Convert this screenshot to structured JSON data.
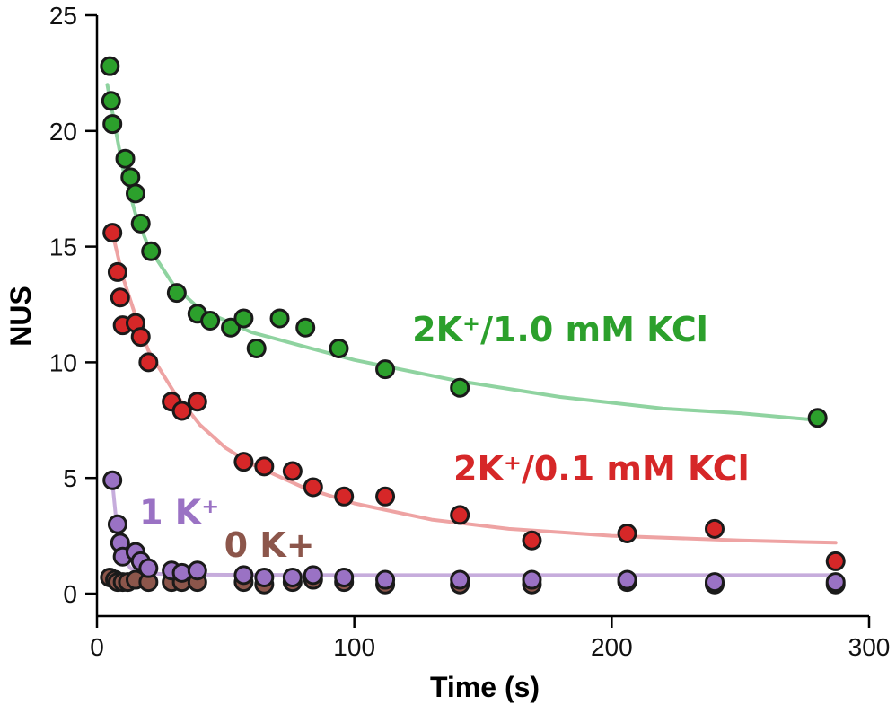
{
  "chart_data": {
    "type": "scatter",
    "xlabel": "Time (s)",
    "ylabel": "NUS",
    "xlim": [
      0,
      300
    ],
    "ylim": [
      0,
      25
    ],
    "x_ticks": [
      "0",
      "100",
      "200",
      "300"
    ],
    "y_ticks": [
      "0",
      "5",
      "10",
      "15",
      "20",
      "25"
    ],
    "grid": false,
    "series": [
      {
        "name": "2K⁺/1.0 mM KCl",
        "color": "#2ca02c",
        "fit_color": "#8fd3a0",
        "points": [
          [
            5,
            22.8
          ],
          [
            5.5,
            21.3
          ],
          [
            6,
            20.3
          ],
          [
            11,
            18.8
          ],
          [
            13,
            18.0
          ],
          [
            15,
            17.3
          ],
          [
            17,
            16.0
          ],
          [
            21,
            14.8
          ],
          [
            31,
            13.0
          ],
          [
            39,
            12.1
          ],
          [
            44,
            11.8
          ],
          [
            52,
            11.5
          ],
          [
            57,
            11.9
          ],
          [
            62,
            10.6
          ],
          [
            71,
            11.9
          ],
          [
            81,
            11.5
          ],
          [
            94,
            10.6
          ],
          [
            112,
            9.7
          ],
          [
            141,
            8.9
          ],
          [
            280,
            7.6
          ]
        ],
        "fit": [
          [
            4,
            22.0
          ],
          [
            10,
            18.4
          ],
          [
            15,
            16.4
          ],
          [
            20,
            15.0
          ],
          [
            30,
            13.3
          ],
          [
            40,
            12.3
          ],
          [
            60,
            11.3
          ],
          [
            80,
            10.7
          ],
          [
            100,
            10.1
          ],
          [
            140,
            9.2
          ],
          [
            180,
            8.5
          ],
          [
            220,
            8.0
          ],
          [
            250,
            7.8
          ],
          [
            280,
            7.5
          ]
        ]
      },
      {
        "name": "2K⁺/0.1 mM KCl",
        "color": "#d62728",
        "fit_color": "#eea3a3",
        "points": [
          [
            6,
            15.6
          ],
          [
            8,
            13.9
          ],
          [
            9,
            12.8
          ],
          [
            10,
            11.6
          ],
          [
            15,
            11.7
          ],
          [
            17,
            11.1
          ],
          [
            20,
            10.0
          ],
          [
            29,
            8.3
          ],
          [
            33,
            7.9
          ],
          [
            39,
            8.3
          ],
          [
            57,
            5.7
          ],
          [
            65,
            5.5
          ],
          [
            76,
            5.3
          ],
          [
            84,
            4.6
          ],
          [
            96,
            4.2
          ],
          [
            112,
            4.2
          ],
          [
            141,
            3.4
          ],
          [
            169,
            2.3
          ],
          [
            206,
            2.6
          ],
          [
            240,
            2.8
          ],
          [
            287,
            1.4
          ]
        ],
        "fit": [
          [
            6,
            15.6
          ],
          [
            10,
            13.7
          ],
          [
            15,
            12.0
          ],
          [
            20,
            10.5
          ],
          [
            30,
            8.7
          ],
          [
            40,
            7.3
          ],
          [
            50,
            6.3
          ],
          [
            60,
            5.6
          ],
          [
            80,
            4.6
          ],
          [
            100,
            3.9
          ],
          [
            130,
            3.2
          ],
          [
            160,
            2.8
          ],
          [
            200,
            2.5
          ],
          [
            250,
            2.3
          ],
          [
            287,
            2.2
          ]
        ]
      },
      {
        "name": "1 K⁺",
        "color": "#9a72c4",
        "fit_color": "#c6acdc",
        "points": [
          [
            6,
            4.9
          ],
          [
            8,
            3.0
          ],
          [
            9,
            2.2
          ],
          [
            10,
            1.6
          ],
          [
            15,
            1.8
          ],
          [
            17,
            1.4
          ],
          [
            20,
            1.1
          ],
          [
            29,
            1.0
          ],
          [
            33,
            0.9
          ],
          [
            39,
            1.0
          ],
          [
            57,
            0.8
          ],
          [
            65,
            0.7
          ],
          [
            76,
            0.7
          ],
          [
            84,
            0.8
          ],
          [
            96,
            0.7
          ],
          [
            112,
            0.6
          ],
          [
            141,
            0.6
          ],
          [
            169,
            0.6
          ],
          [
            206,
            0.6
          ],
          [
            240,
            0.5
          ],
          [
            287,
            0.5
          ]
        ],
        "fit": [
          [
            6,
            4.8
          ],
          [
            8,
            2.6
          ],
          [
            10,
            1.6
          ],
          [
            13,
            1.1
          ],
          [
            17,
            0.9
          ],
          [
            25,
            0.85
          ],
          [
            40,
            0.82
          ],
          [
            100,
            0.8
          ],
          [
            200,
            0.8
          ],
          [
            287,
            0.8
          ]
        ]
      },
      {
        "name": "0 K+",
        "color": "#8c564b",
        "fit_color": "#c6acdc",
        "points": [
          [
            5,
            0.7
          ],
          [
            7,
            0.6
          ],
          [
            8,
            0.5
          ],
          [
            10,
            0.5
          ],
          [
            12,
            0.5
          ],
          [
            15,
            0.6
          ],
          [
            20,
            0.5
          ],
          [
            29,
            0.5
          ],
          [
            33,
            0.5
          ],
          [
            39,
            0.5
          ],
          [
            57,
            0.5
          ],
          [
            65,
            0.4
          ],
          [
            76,
            0.5
          ],
          [
            84,
            0.6
          ],
          [
            96,
            0.5
          ],
          [
            112,
            0.4
          ],
          [
            141,
            0.4
          ],
          [
            169,
            0.4
          ],
          [
            206,
            0.5
          ],
          [
            240,
            0.4
          ],
          [
            287,
            0.4
          ]
        ]
      }
    ],
    "annotations": [
      {
        "text": "2K⁺/1.0 mM KCl",
        "series": 0,
        "x": 180,
        "y": 10.9
      },
      {
        "text": "2K⁺/0.1 mM KCl",
        "series": 1,
        "x": 196,
        "y": 4.9
      },
      {
        "text": "1 K⁺",
        "series": 2,
        "x": 32,
        "y": 3.0
      },
      {
        "text": "0 K+",
        "series": 3,
        "x": 67,
        "y": 1.6
      }
    ]
  }
}
